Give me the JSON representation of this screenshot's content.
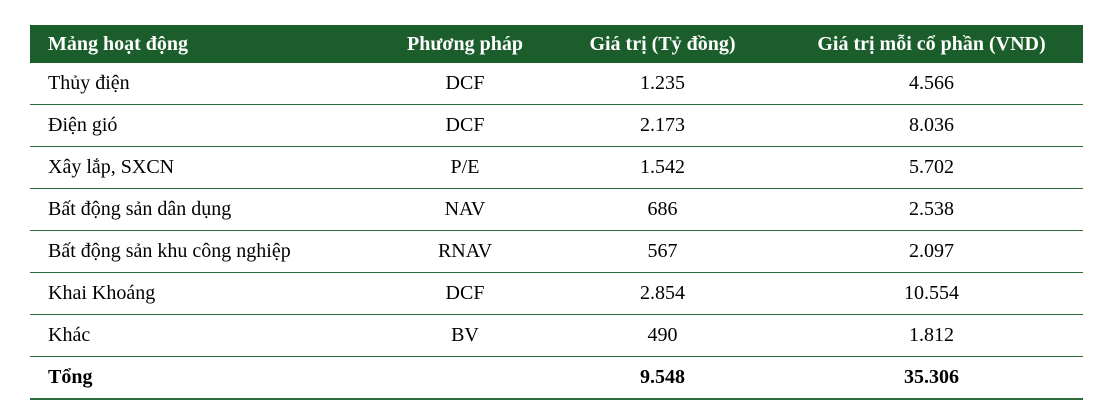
{
  "table": {
    "header": [
      "Mảng hoạt động",
      "Phương pháp",
      "Giá trị (Tỷ đồng)",
      "Giá trị mỗi cổ phần (VND)"
    ],
    "rows": [
      [
        "Thủy điện",
        "DCF",
        "1.235",
        "4.566"
      ],
      [
        "Điện gió",
        "DCF",
        "2.173",
        "8.036"
      ],
      [
        "Xây lắp, SXCN",
        "P/E",
        "1.542",
        "5.702"
      ],
      [
        "Bất động sản dân dụng",
        "NAV",
        "686",
        "2.538"
      ],
      [
        "Bất động sản khu công nghiệp",
        "RNAV",
        "567",
        "2.097"
      ],
      [
        "Khai Khoáng",
        "DCF",
        "2.854",
        "10.554"
      ],
      [
        "Khác",
        "BV",
        "490",
        "1.812"
      ],
      [
        "Tổng",
        "",
        "9.548",
        "35.306"
      ]
    ]
  }
}
